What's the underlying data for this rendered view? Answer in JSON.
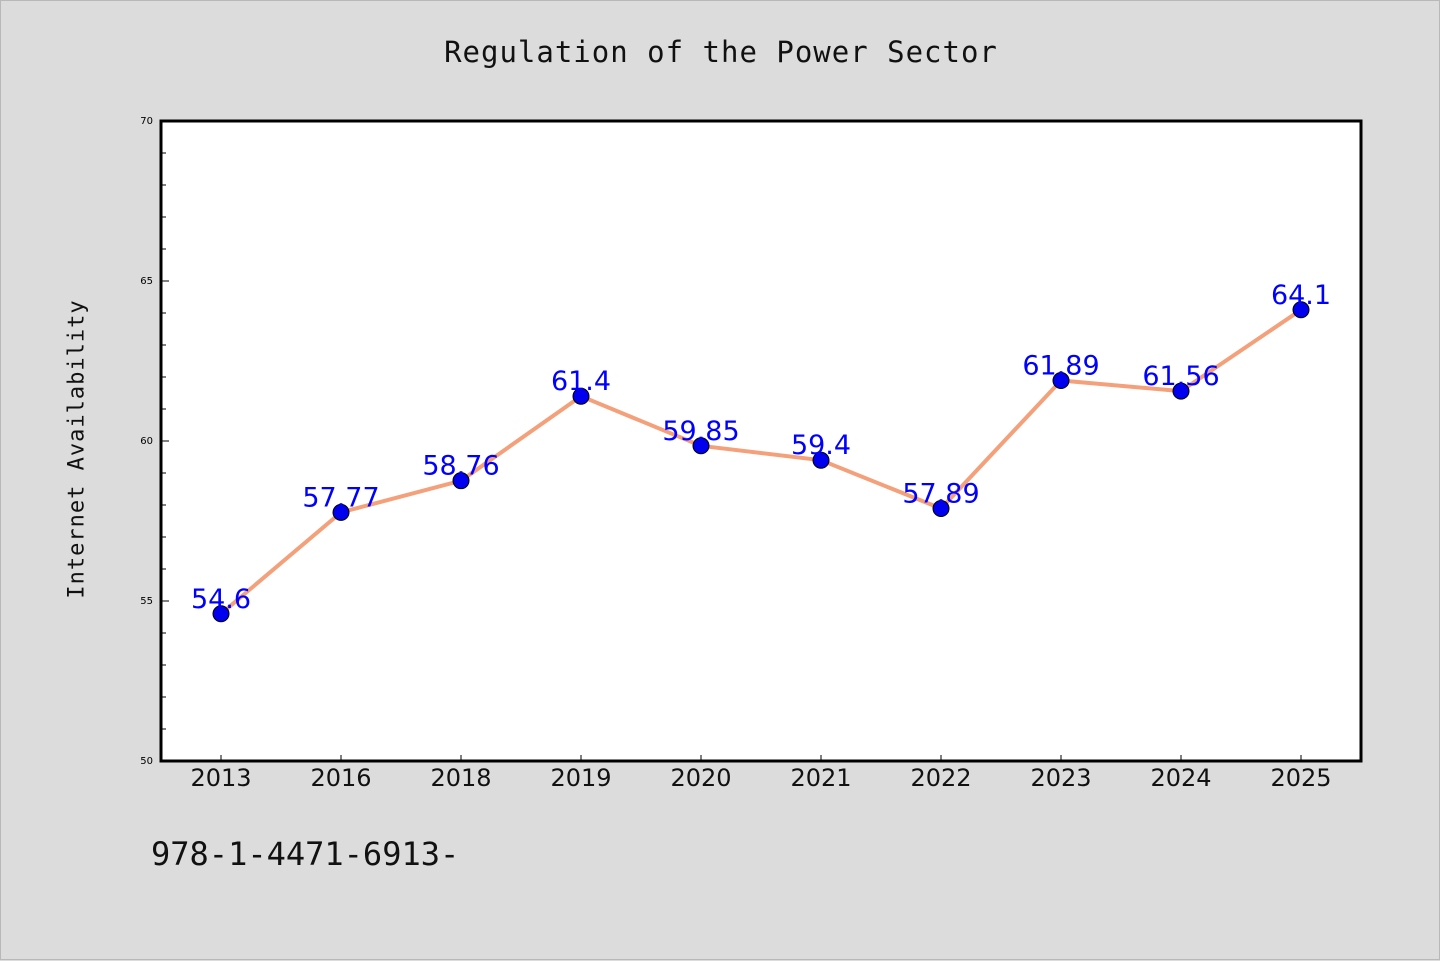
{
  "chart_data": {
    "type": "line",
    "title": "Regulation of the Power Sector",
    "xlabel": "",
    "ylabel": "Internet Availability",
    "categories": [
      "2013",
      "2016",
      "2018",
      "2019",
      "2020",
      "2021",
      "2022",
      "2023",
      "2024",
      "2025"
    ],
    "series": [
      {
        "values": [
          54.6,
          57.77,
          58.76,
          61.4,
          59.85,
          59.4,
          57.89,
          61.89,
          61.56,
          64.1
        ]
      }
    ],
    "data_labels": [
      "54.6",
      "57.77",
      "58.76",
      "61.4",
      "59.85",
      "59.4",
      "57.89",
      "61.89",
      "61.56",
      "64.1"
    ],
    "ylim": [
      50,
      70
    ],
    "yticks": [
      "50",
      "55",
      "60",
      "65",
      "70"
    ],
    "grid": false,
    "line_color": "#f4a07a",
    "marker_color": "#0000ee",
    "label_color": "#0000ff"
  },
  "footer": {
    "text": "978-1-4471-6913-"
  }
}
